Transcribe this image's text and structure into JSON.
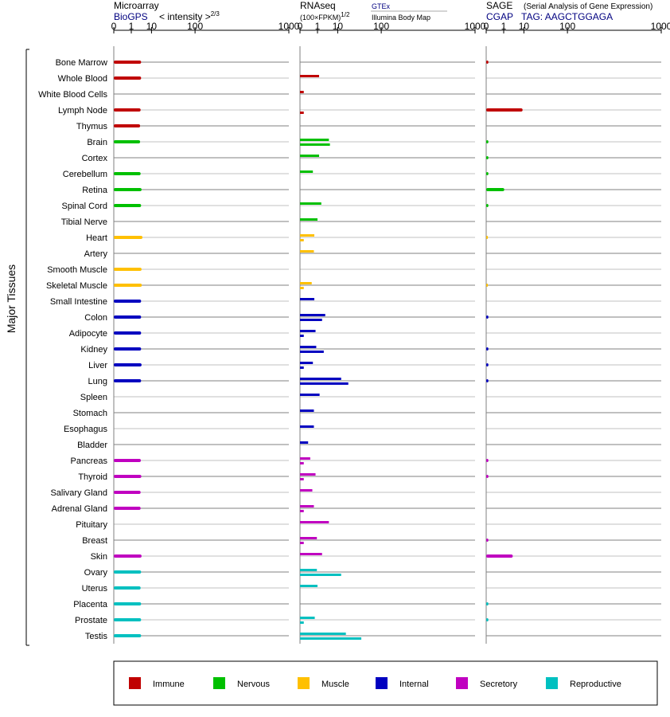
{
  "headers": {
    "microarray": {
      "title": "Microarray",
      "source": "BioGPS",
      "unit_prefix": "< intensity >",
      "unit_exp": "2/3"
    },
    "rnaseq": {
      "title": "RNAseq",
      "unit": "(100×FPKM)",
      "unit_exp": "1/2",
      "source1": "GTEx",
      "source2": "Illumina Body Map"
    },
    "sage": {
      "title": "SAGE",
      "subtitle": "(Serial Analysis of Gene Expression)",
      "source": "CGAP",
      "tag": "TAG: AAGCTGGAGA"
    }
  },
  "y_group_label": "Major Tissues",
  "legend": [
    {
      "label": "Immune",
      "color": "#c00000"
    },
    {
      "label": "Nervous",
      "color": "#00c000"
    },
    {
      "label": "Muscle",
      "color": "#ffc000"
    },
    {
      "label": "Internal",
      "color": "#0000c0"
    },
    {
      "label": "Secretory",
      "color": "#c000c0"
    },
    {
      "label": "Reproductive",
      "color": "#00c0c0"
    }
  ],
  "chart_data": {
    "type": "bar",
    "orientation": "horizontal",
    "categories": [
      "Bone Marrow",
      "Whole Blood",
      "White Blood Cells",
      "Lymph Node",
      "Thymus",
      "Brain",
      "Cortex",
      "Cerebellum",
      "Retina",
      "Spinal Cord",
      "Tibial Nerve",
      "Heart",
      "Artery",
      "Smooth Muscle",
      "Skeletal Muscle",
      "Small Intestine",
      "Colon",
      "Adipocyte",
      "Kidney",
      "Liver",
      "Lung",
      "Spleen",
      "Stomach",
      "Esophagus",
      "Bladder",
      "Pancreas",
      "Thyroid",
      "Salivary Gland",
      "Adrenal Gland",
      "Pituitary",
      "Breast",
      "Skin",
      "Ovary",
      "Uterus",
      "Placenta",
      "Prostate",
      "Testis"
    ],
    "tissue_group": [
      "Immune",
      "Immune",
      "Immune",
      "Immune",
      "Immune",
      "Nervous",
      "Nervous",
      "Nervous",
      "Nervous",
      "Nervous",
      "Nervous",
      "Muscle",
      "Muscle",
      "Muscle",
      "Muscle",
      "Internal",
      "Internal",
      "Internal",
      "Internal",
      "Internal",
      "Internal",
      "Internal",
      "Internal",
      "Internal",
      "Internal",
      "Secretory",
      "Secretory",
      "Secretory",
      "Secretory",
      "Secretory",
      "Secretory",
      "Secretory",
      "Reproductive",
      "Reproductive",
      "Reproductive",
      "Reproductive",
      "Reproductive"
    ],
    "x_ticks": [
      0,
      1,
      10,
      100,
      1000
    ],
    "x_scale": "power-1/3",
    "xlim": [
      0,
      1000
    ],
    "panels": [
      {
        "name": "Microarray",
        "series": [
          {
            "name": "BioGPS",
            "values": [
              3.8,
              3.8,
              null,
              3.6,
              3.4,
              3.4,
              null,
              3.6,
              4.0,
              3.8,
              null,
              4.4,
              null,
              4.0,
              4.1,
              3.8,
              3.8,
              3.8,
              3.8,
              4.0,
              3.8,
              null,
              null,
              null,
              null,
              3.7,
              3.9,
              3.6,
              3.6,
              null,
              null,
              4.0,
              3.8,
              3.6,
              3.8,
              3.8,
              3.8
            ]
          }
        ]
      },
      {
        "name": "RNAseq",
        "series": [
          {
            "name": "GTEx",
            "values": [
              null,
              1.3,
              0.01,
              null,
              null,
              4.5,
              1.3,
              0.4,
              null,
              1.8,
              1.0,
              0.55,
              0.5,
              null,
              0.3,
              0.55,
              3.0,
              0.7,
              0.8,
              0.4,
              13,
              1.4,
              0.5,
              0.5,
              0.1,
              0.2,
              0.7,
              0.35,
              0.5,
              4.5,
              0.9,
              2.0,
              0.9,
              1.0,
              null,
              0.6,
              18
            ]
          },
          {
            "name": "Illumina Body Map",
            "values": [
              null,
              null,
              null,
              0.01,
              null,
              5.0,
              null,
              null,
              null,
              null,
              null,
              0.01,
              null,
              null,
              0.01,
              null,
              2.0,
              0.01,
              2.5,
              0.01,
              21,
              null,
              null,
              null,
              null,
              0.01,
              0.01,
              null,
              0.01,
              null,
              0.01,
              null,
              13,
              null,
              null,
              0.01,
              43
            ]
          }
        ]
      },
      {
        "name": "SAGE",
        "series": [
          {
            "name": "CGAP",
            "values": [
              0.002,
              null,
              null,
              9.0,
              null,
              0.002,
              0.002,
              0.002,
              1.1,
              0.002,
              null,
              0.001,
              null,
              null,
              0.001,
              null,
              0.002,
              null,
              0.002,
              0.002,
              0.002,
              null,
              null,
              null,
              null,
              0.002,
              0.002,
              null,
              null,
              null,
              0.002,
              3.5,
              null,
              null,
              0.002,
              0.002,
              null
            ]
          }
        ]
      }
    ]
  }
}
